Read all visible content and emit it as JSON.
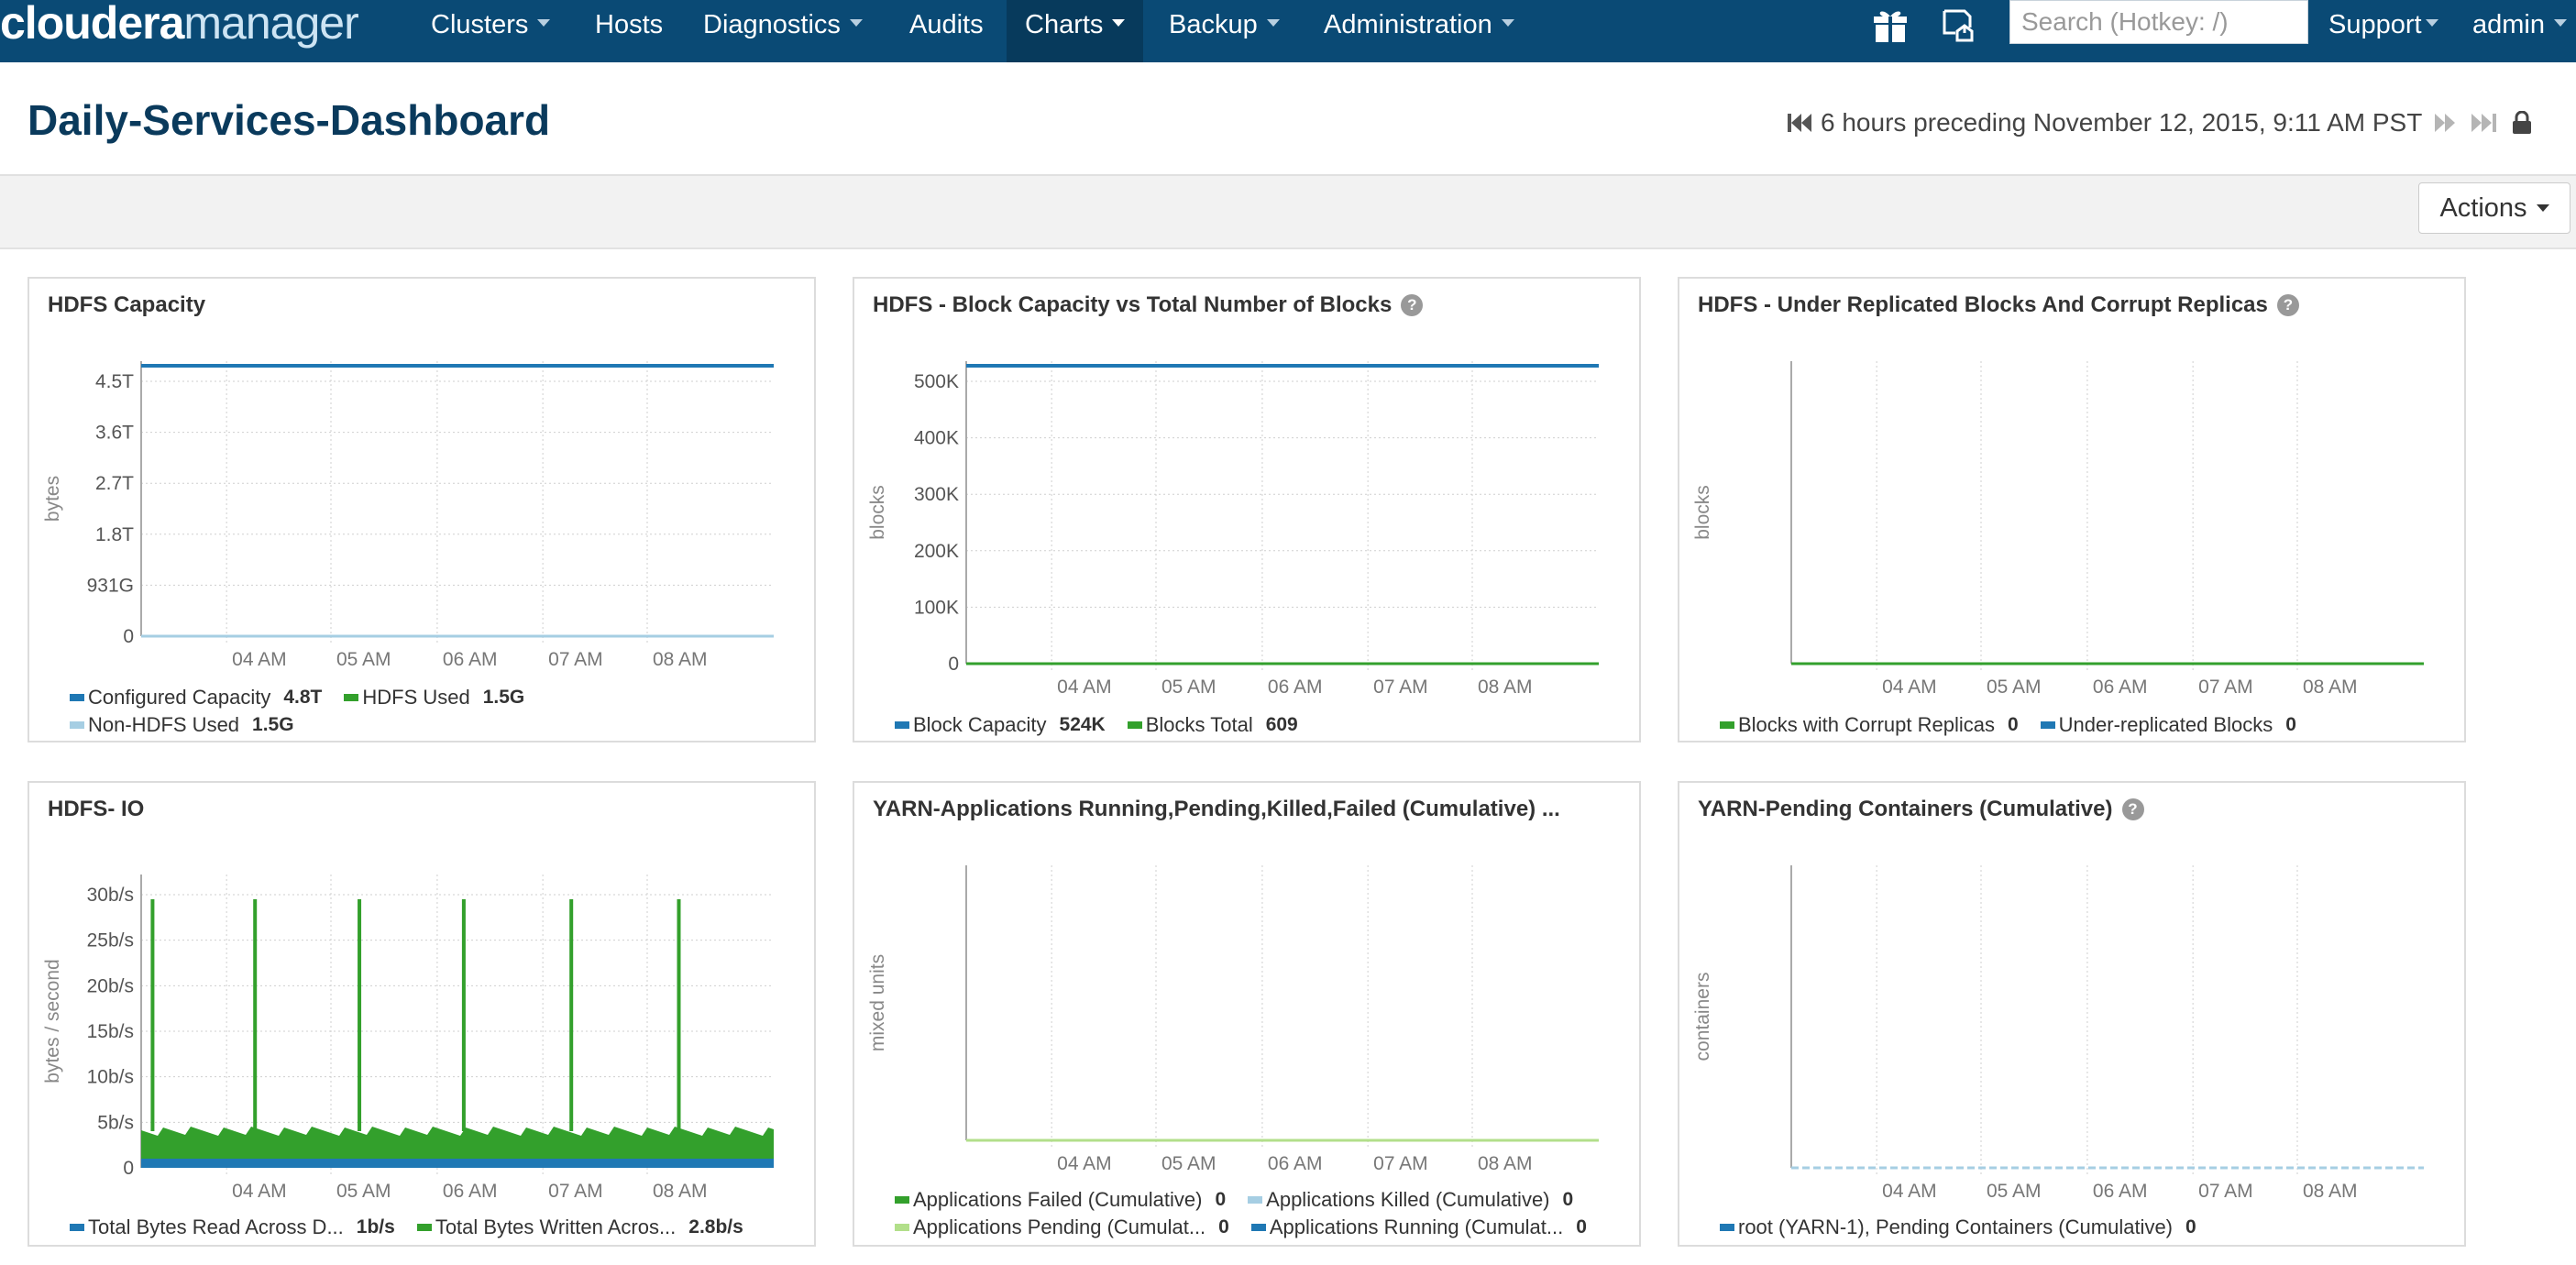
{
  "nav": {
    "logo_bold": "cloudera",
    "logo_light": "manager",
    "items": [
      {
        "label": "Clusters",
        "caret": true
      },
      {
        "label": "Hosts",
        "caret": false
      },
      {
        "label": "Diagnostics",
        "caret": true
      },
      {
        "label": "Audits",
        "caret": false
      },
      {
        "label": "Charts",
        "caret": true,
        "active": true
      },
      {
        "label": "Backup",
        "caret": true
      },
      {
        "label": "Administration",
        "caret": true
      }
    ],
    "search_placeholder": "Search (Hotkey: /)",
    "support_label": "Support",
    "user_label": "admin",
    "icons": [
      "gift-icon",
      "parcel-icon"
    ]
  },
  "page": {
    "title": "Daily-Services-Dashboard",
    "time_range": "6 hours preceding November 12, 2015, 9:11 AM PST",
    "actions_label": "Actions"
  },
  "colors": {
    "nav_bg": "#0a4a75",
    "blue": "#1f78b4",
    "green": "#33a02c",
    "light_blue": "#a6cee3",
    "light_green": "#b2df8a"
  },
  "time_ticks": [
    "04 AM",
    "05 AM",
    "06 AM",
    "07 AM",
    "08 AM"
  ],
  "charts": [
    {
      "title": "HDFS Capacity",
      "help": false,
      "ylabel": "bytes",
      "y_ticks": [
        "4.5T",
        "3.6T",
        "2.7T",
        "1.8T",
        "931G",
        "0"
      ],
      "legend": [
        [
          {
            "name": "Configured Capacity",
            "value": "4.8T",
            "color": "#1f78b4"
          },
          {
            "name": "HDFS Used",
            "value": "1.5G",
            "color": "#33a02c"
          }
        ],
        [
          {
            "name": "Non-HDFS Used",
            "value": "1.5G",
            "color": "#a6cee3"
          }
        ]
      ]
    },
    {
      "title": "HDFS - Block Capacity vs Total Number of Blocks",
      "help": true,
      "ylabel": "blocks",
      "y_ticks": [
        "500K",
        "400K",
        "300K",
        "200K",
        "100K",
        "0"
      ],
      "legend": [
        [
          {
            "name": "Block Capacity",
            "value": "524K",
            "color": "#1f78b4"
          },
          {
            "name": "Blocks Total",
            "value": "609",
            "color": "#33a02c"
          }
        ]
      ]
    },
    {
      "title": "HDFS - Under Replicated Blocks And Corrupt Replicas",
      "help": true,
      "ylabel": "blocks",
      "y_ticks": [],
      "legend": [
        [
          {
            "name": "Blocks with Corrupt Replicas",
            "value": "0",
            "color": "#33a02c"
          },
          {
            "name": "Under-replicated Blocks",
            "value": "0",
            "color": "#1f78b4"
          }
        ]
      ]
    },
    {
      "title": "HDFS- IO",
      "help": false,
      "ylabel": "bytes / second",
      "y_ticks": [
        "30b/s",
        "25b/s",
        "20b/s",
        "15b/s",
        "10b/s",
        "5b/s",
        "0"
      ],
      "legend": [
        [
          {
            "name": "Total Bytes Read Across D...",
            "value": "1b/s",
            "color": "#1f78b4"
          },
          {
            "name": "Total Bytes Written Acros...",
            "value": "2.8b/s",
            "color": "#33a02c"
          }
        ]
      ]
    },
    {
      "title": "YARN-Applications Running,Pending,Killed,Failed (Cumulative) ...",
      "help": false,
      "ylabel": "mixed units",
      "y_ticks": [],
      "legend": [
        [
          {
            "name": "Applications Failed (Cumulative)",
            "value": "0",
            "color": "#33a02c"
          },
          {
            "name": "Applications Killed (Cumulative)",
            "value": "0",
            "color": "#a6cee3"
          }
        ],
        [
          {
            "name": "Applications Pending (Cumulat...",
            "value": "0",
            "color": "#b2df8a"
          },
          {
            "name": "Applications Running (Cumulat...",
            "value": "0",
            "color": "#1f78b4"
          }
        ]
      ]
    },
    {
      "title": "YARN-Pending Containers (Cumulative)",
      "help": true,
      "ylabel": "containers",
      "y_ticks": [],
      "legend": [
        [
          {
            "name": "root (YARN-1), Pending Containers (Cumulative)",
            "value": "0",
            "color": "#1f78b4"
          }
        ]
      ]
    }
  ]
}
